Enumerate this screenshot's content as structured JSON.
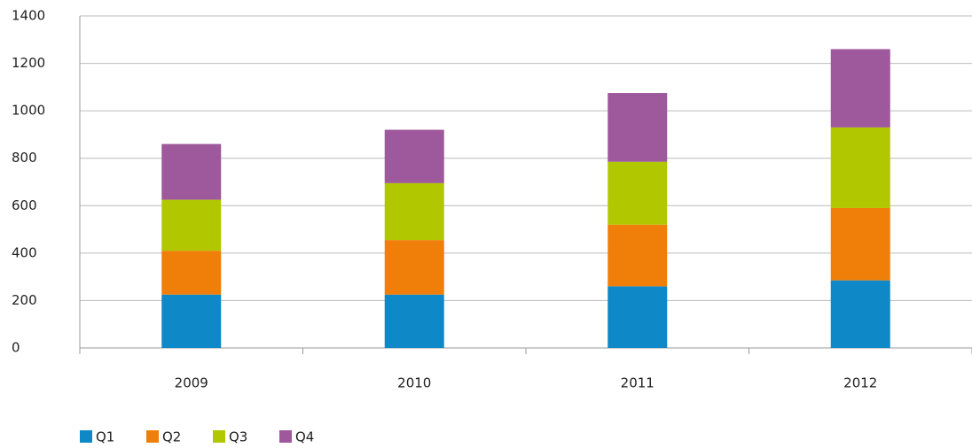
{
  "chart_data": {
    "type": "stacked_bar",
    "categories": [
      "2009",
      "2010",
      "2011",
      "2012"
    ],
    "series": [
      {
        "name": "Q1",
        "color": "#0e88c6",
        "values": [
          225,
          225,
          260,
          285
        ]
      },
      {
        "name": "Q2",
        "color": "#f07f09",
        "values": [
          185,
          230,
          260,
          305
        ]
      },
      {
        "name": "Q3",
        "color": "#b1c700",
        "values": [
          215,
          240,
          265,
          340
        ]
      },
      {
        "name": "Q4",
        "color": "#9e589c",
        "values": [
          235,
          225,
          290,
          330
        ]
      }
    ],
    "ylim": [
      0,
      1400
    ],
    "yticks": [
      0,
      200,
      400,
      600,
      800,
      1000,
      1200,
      1400
    ],
    "grid": true,
    "legend": "bottom-left"
  }
}
